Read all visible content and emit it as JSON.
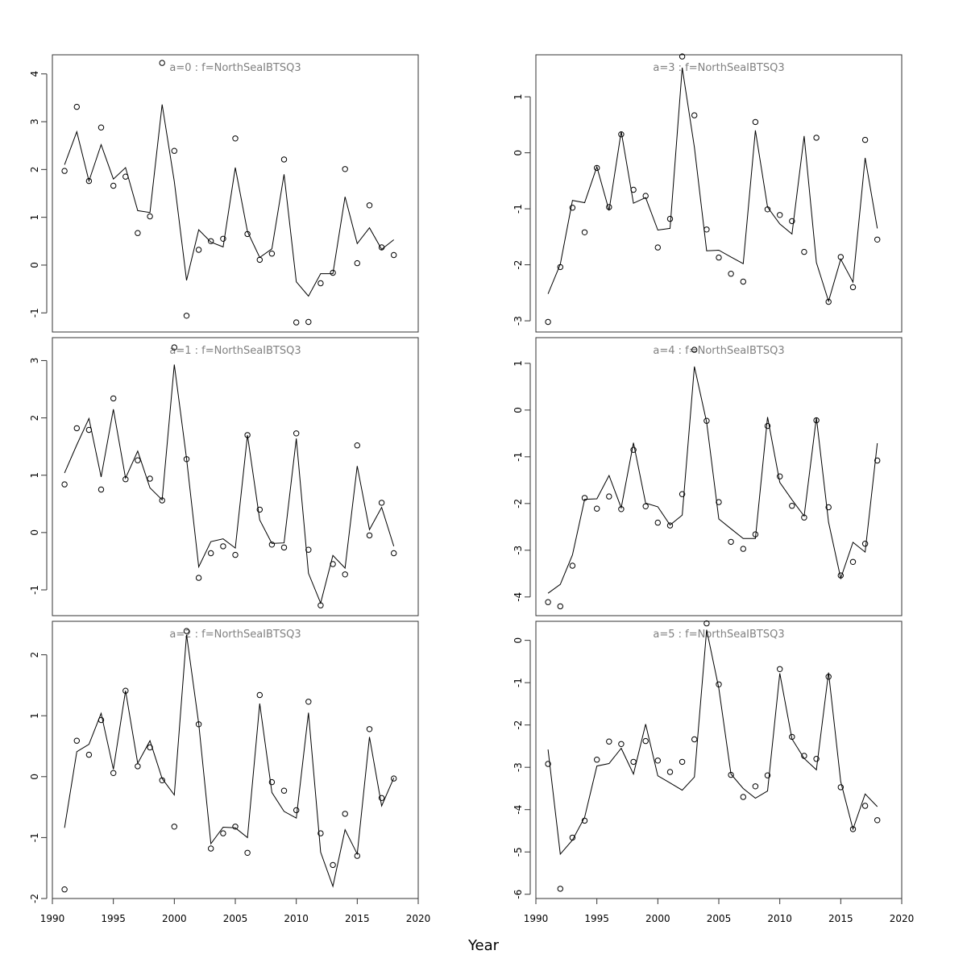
{
  "figure": {
    "xlabel": "Year"
  },
  "colors": {
    "title": "#808080",
    "ink": "#000000",
    "frame": "#333333"
  },
  "chart_data": [
    {
      "type": "line",
      "title": "a=0  :  f=NorthSeaIBTSQ3",
      "xlim": [
        1990,
        2020
      ],
      "ylim": [
        -1.4,
        4.4
      ],
      "yticks": [
        -1,
        0,
        1,
        2,
        3,
        4
      ],
      "x": [
        1991,
        1992,
        1993,
        1994,
        1995,
        1996,
        1997,
        1998,
        1999,
        2000,
        2001,
        2002,
        2003,
        2004,
        2005,
        2006,
        2007,
        2008,
        2009,
        2010,
        2011,
        2012,
        2013,
        2014,
        2015,
        2016,
        2017,
        2018
      ],
      "series": [
        {
          "kind": "points",
          "values": [
            1.97,
            3.31,
            1.76,
            2.88,
            1.66,
            1.85,
            0.67,
            1.02,
            4.23,
            2.39,
            -1.06,
            0.32,
            0.5,
            0.55,
            2.65,
            0.65,
            0.11,
            0.24,
            2.21,
            -1.2,
            -1.19,
            -0.38,
            -0.16,
            2.01,
            0.04,
            1.25,
            0.37,
            0.21
          ]
        },
        {
          "kind": "line",
          "values": [
            2.1,
            2.79,
            1.76,
            2.52,
            1.8,
            2.04,
            1.14,
            1.1,
            3.36,
            1.75,
            -0.32,
            0.74,
            0.48,
            0.38,
            2.04,
            0.7,
            0.16,
            0.34,
            1.9,
            -0.35,
            -0.65,
            -0.18,
            -0.18,
            1.43,
            0.45,
            0.78,
            0.33,
            0.53
          ]
        }
      ]
    },
    {
      "type": "line",
      "title": "a=3  :  f=NorthSeaIBTSQ3",
      "xlim": [
        1990,
        2020
      ],
      "ylim": [
        -3.2,
        1.75
      ],
      "yticks": [
        -3,
        -2,
        -1,
        0,
        1
      ],
      "x": [
        1991,
        1992,
        1993,
        1994,
        1995,
        1996,
        1997,
        1998,
        1999,
        2000,
        2001,
        2002,
        2003,
        2004,
        2005,
        2006,
        2007,
        2008,
        2009,
        2010,
        2011,
        2012,
        2013,
        2014,
        2015,
        2016,
        2017,
        2018
      ],
      "series": [
        {
          "kind": "points",
          "values": [
            -3.02,
            -2.04,
            -0.98,
            -1.42,
            -0.27,
            -0.97,
            0.33,
            -0.66,
            -0.77,
            -1.69,
            -1.18,
            1.72,
            0.67,
            -1.37,
            -1.87,
            -2.16,
            -2.3,
            0.55,
            -1.01,
            -1.11,
            -1.22,
            -1.77,
            0.27,
            -2.66,
            -1.86,
            -2.4,
            0.23,
            -1.55
          ]
        },
        {
          "kind": "line",
          "values": [
            -2.52,
            -1.99,
            -0.85,
            -0.89,
            -0.25,
            -1.03,
            0.38,
            -0.9,
            -0.8,
            -1.38,
            -1.35,
            1.52,
            0.1,
            -1.75,
            -1.74,
            -1.86,
            -1.98,
            0.4,
            -0.97,
            -1.27,
            -1.45,
            0.3,
            -1.96,
            -2.65,
            -1.9,
            -2.31,
            -0.09,
            -1.35
          ]
        }
      ]
    },
    {
      "type": "line",
      "title": "a=1  :  f=NorthSeaIBTSQ3",
      "xlim": [
        1990,
        2020
      ],
      "ylim": [
        -1.45,
        3.4
      ],
      "yticks": [
        -1,
        0,
        1,
        2,
        3
      ],
      "x": [
        1991,
        1992,
        1993,
        1994,
        1995,
        1996,
        1997,
        1998,
        1999,
        2000,
        2001,
        2002,
        2003,
        2004,
        2005,
        2006,
        2007,
        2008,
        2009,
        2010,
        2011,
        2012,
        2013,
        2014,
        2015,
        2016,
        2017,
        2018
      ],
      "series": [
        {
          "kind": "points",
          "values": [
            0.84,
            1.82,
            1.79,
            0.75,
            2.34,
            0.93,
            1.26,
            0.94,
            0.56,
            3.23,
            1.28,
            -0.79,
            -0.36,
            -0.24,
            -0.39,
            1.7,
            0.4,
            -0.21,
            -0.26,
            1.73,
            -0.3,
            -1.27,
            -0.55,
            -0.73,
            1.52,
            -0.05,
            0.52,
            -0.36
          ]
        },
        {
          "kind": "line",
          "values": [
            1.04,
            1.53,
            1.99,
            0.97,
            2.15,
            0.95,
            1.42,
            0.78,
            0.57,
            2.93,
            1.29,
            -0.6,
            -0.16,
            -0.11,
            -0.27,
            1.7,
            0.22,
            -0.19,
            -0.18,
            1.64,
            -0.71,
            -1.23,
            -0.4,
            -0.62,
            1.16,
            0.05,
            0.44,
            -0.24
          ]
        }
      ]
    },
    {
      "type": "line",
      "title": "a=4  :  f=NorthSeaIBTSQ3",
      "xlim": [
        1990,
        2020
      ],
      "ylim": [
        -4.4,
        1.55
      ],
      "yticks": [
        -4,
        -3,
        -2,
        -1,
        0,
        1
      ],
      "x": [
        1991,
        1992,
        1993,
        1994,
        1995,
        1996,
        1997,
        1998,
        1999,
        2000,
        2001,
        2002,
        2003,
        2004,
        2005,
        2006,
        2007,
        2008,
        2009,
        2010,
        2011,
        2012,
        2013,
        2014,
        2015,
        2016,
        2017,
        2018
      ],
      "series": [
        {
          "kind": "points",
          "values": [
            -4.11,
            -4.2,
            -3.33,
            -1.88,
            -2.11,
            -1.85,
            -2.12,
            -0.85,
            -2.06,
            -2.41,
            -2.47,
            -1.8,
            1.29,
            -0.23,
            -1.97,
            -2.82,
            -2.97,
            -2.66,
            -0.34,
            -1.42,
            -2.05,
            -2.3,
            -0.22,
            -2.08,
            -3.54,
            -3.25,
            -2.86,
            -1.08
          ]
        },
        {
          "kind": "line",
          "values": [
            -3.92,
            -3.73,
            -3.1,
            -1.91,
            -1.9,
            -1.4,
            -2.09,
            -0.7,
            -1.99,
            -2.07,
            -2.46,
            -2.25,
            0.93,
            -0.26,
            -2.33,
            -2.54,
            -2.75,
            -2.75,
            -0.15,
            -1.55,
            -1.92,
            -2.27,
            -0.16,
            -2.4,
            -3.6,
            -2.83,
            -3.04,
            -0.71
          ]
        }
      ]
    },
    {
      "type": "line",
      "title": "a=2  :  f=NorthSeaIBTSQ3",
      "xlim": [
        1990,
        2020
      ],
      "ylim": [
        -2.0,
        2.55
      ],
      "yticks": [
        -2,
        -1,
        0,
        1,
        2
      ],
      "x": [
        1991,
        1992,
        1993,
        1994,
        1995,
        1996,
        1997,
        1998,
        1999,
        2000,
        2001,
        2002,
        2003,
        2004,
        2005,
        2006,
        2007,
        2008,
        2009,
        2010,
        2011,
        2012,
        2013,
        2014,
        2015,
        2016,
        2017,
        2018
      ],
      "series": [
        {
          "kind": "points",
          "values": [
            -1.85,
            0.59,
            0.36,
            0.93,
            0.06,
            1.41,
            0.17,
            0.48,
            -0.06,
            -0.82,
            2.39,
            0.86,
            -1.18,
            -0.93,
            -0.82,
            -1.25,
            1.34,
            -0.09,
            -0.23,
            -0.55,
            1.23,
            -0.93,
            -1.45,
            -0.61,
            -1.3,
            0.78,
            -0.35,
            -0.03
          ]
        },
        {
          "kind": "line",
          "values": [
            -0.84,
            0.41,
            0.53,
            1.04,
            0.12,
            1.41,
            0.22,
            0.59,
            -0.03,
            -0.3,
            2.33,
            0.87,
            -1.1,
            -0.83,
            -0.84,
            -1.0,
            1.2,
            -0.26,
            -0.57,
            -0.68,
            1.05,
            -1.24,
            -1.8,
            -0.87,
            -1.27,
            0.65,
            -0.48,
            -0.02
          ]
        }
      ]
    },
    {
      "type": "line",
      "title": "a=5  :  f=NorthSeaIBTSQ3",
      "xlim": [
        1990,
        2020
      ],
      "ylim": [
        -6.1,
        0.45
      ],
      "yticks": [
        -6,
        -5,
        -4,
        -3,
        -2,
        -1,
        0
      ],
      "x": [
        1991,
        1992,
        1993,
        1994,
        1995,
        1996,
        1997,
        1998,
        1999,
        2000,
        2001,
        2002,
        2003,
        2004,
        2005,
        2006,
        2007,
        2008,
        2009,
        2010,
        2011,
        2012,
        2013,
        2014,
        2015,
        2016,
        2017,
        2018
      ],
      "series": [
        {
          "kind": "points",
          "values": [
            -2.92,
            -5.87,
            -4.66,
            -4.26,
            -2.82,
            -2.39,
            -2.45,
            -2.87,
            -2.38,
            -2.84,
            -3.11,
            -2.87,
            -2.34,
            0.4,
            -1.04,
            -3.18,
            -3.7,
            -3.45,
            -3.19,
            -0.68,
            -2.28,
            -2.73,
            -2.8,
            -0.86,
            -3.47,
            -4.46,
            -3.91,
            -4.25
          ]
        },
        {
          "kind": "line",
          "values": [
            -2.58,
            -5.05,
            -4.72,
            -4.18,
            -2.97,
            -2.91,
            -2.55,
            -3.16,
            -1.98,
            -3.2,
            -3.37,
            -3.54,
            -3.23,
            0.25,
            -1.13,
            -3.16,
            -3.5,
            -3.73,
            -3.56,
            -0.78,
            -2.33,
            -2.79,
            -3.06,
            -0.76,
            -3.34,
            -4.46,
            -3.63,
            -3.93
          ]
        }
      ]
    }
  ]
}
